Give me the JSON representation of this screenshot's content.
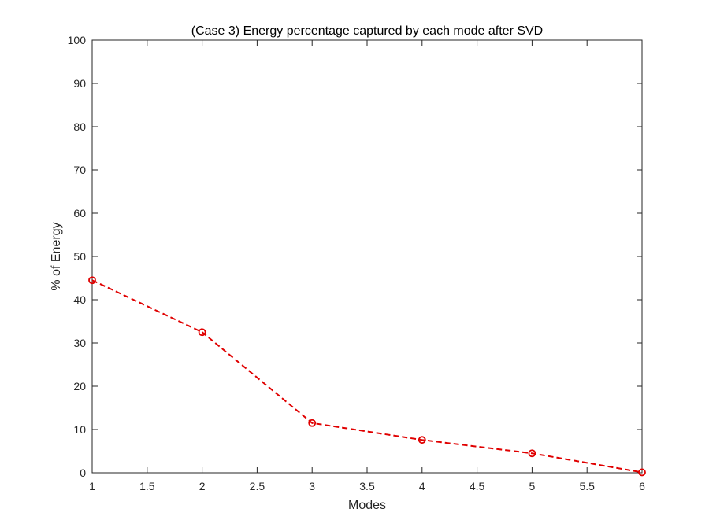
{
  "chart_data": {
    "type": "line",
    "title": "(Case 3) Energy percentage captured by each mode after SVD",
    "xlabel": "Modes",
    "ylabel": "% of Energy",
    "xlim": [
      1,
      6
    ],
    "ylim": [
      0,
      100
    ],
    "x_ticks": [
      "1",
      "1.5",
      "2",
      "2.5",
      "3",
      "3.5",
      "4",
      "4.5",
      "5",
      "5.5",
      "6"
    ],
    "y_ticks": [
      "0",
      "10",
      "20",
      "30",
      "40",
      "50",
      "60",
      "70",
      "80",
      "90",
      "100"
    ],
    "grid": false,
    "series": [
      {
        "x": [
          1,
          2,
          3,
          4,
          5,
          6
        ],
        "y": [
          44.5,
          32.5,
          11.5,
          7.6,
          4.5,
          0.1
        ],
        "color": "#e00000",
        "line_style": "dashed",
        "marker": "circle"
      }
    ]
  }
}
